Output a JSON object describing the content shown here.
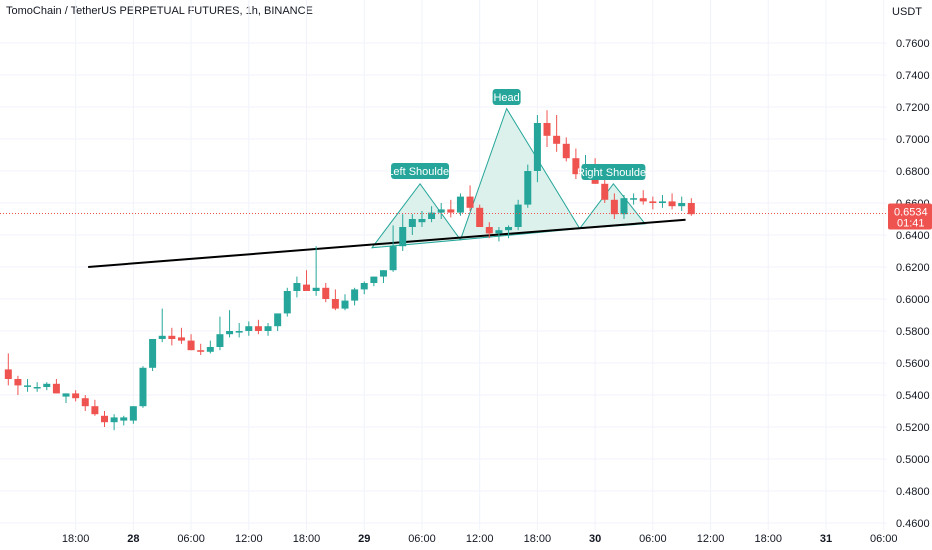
{
  "header": {
    "title": "TomoChain / TetherUS PERPETUAL FUTURES, 1h, BINANCE",
    "currency": "USDT"
  },
  "colors": {
    "up": "#26a69a",
    "down": "#ef5350",
    "pattern_fill": "#d7efe9",
    "pattern_line": "#26a69a",
    "neckline": "#000000",
    "current_price_line": "#ef5350",
    "grid": "#f0f3fa"
  },
  "chart_data": {
    "type": "candlestick",
    "symbol": "TomoChain / TetherUS PERPETUAL FUTURES",
    "interval": "1h",
    "exchange": "BINANCE",
    "ylim": [
      0.46,
      0.77
    ],
    "y_ticks": [
      "0.7600",
      "0.7400",
      "0.7200",
      "0.7000",
      "0.6800",
      "0.6600",
      "0.6400",
      "0.6200",
      "0.6000",
      "0.5800",
      "0.5600",
      "0.5400",
      "0.5200",
      "0.5000",
      "0.4800",
      "0.4600"
    ],
    "x_ticks": [
      {
        "label": "18:00",
        "bar": 7,
        "bold": false
      },
      {
        "label": "28",
        "bar": 13,
        "bold": true
      },
      {
        "label": "06:00",
        "bar": 19,
        "bold": false
      },
      {
        "label": "12:00",
        "bar": 25,
        "bold": false
      },
      {
        "label": "18:00",
        "bar": 31,
        "bold": false
      },
      {
        "label": "29",
        "bar": 37,
        "bold": true
      },
      {
        "label": "06:00",
        "bar": 43,
        "bold": false
      },
      {
        "label": "12:00",
        "bar": 49,
        "bold": false
      },
      {
        "label": "18:00",
        "bar": 55,
        "bold": false
      },
      {
        "label": "30",
        "bar": 61,
        "bold": true
      },
      {
        "label": "06:00",
        "bar": 67,
        "bold": false
      },
      {
        "label": "12:00",
        "bar": 73,
        "bold": false
      },
      {
        "label": "18:00",
        "bar": 79,
        "bold": false
      },
      {
        "label": "31",
        "bar": 85,
        "bold": true
      },
      {
        "label": "06:00",
        "bar": 91,
        "bold": false
      }
    ],
    "candles": [
      [
        0.556,
        0.566,
        0.546,
        0.55
      ],
      [
        0.55,
        0.552,
        0.54,
        0.546
      ],
      [
        0.546,
        0.55,
        0.542,
        0.546
      ],
      [
        0.545,
        0.548,
        0.542,
        0.545
      ],
      [
        0.545,
        0.548,
        0.543,
        0.547
      ],
      [
        0.547,
        0.55,
        0.541,
        0.541
      ],
      [
        0.539,
        0.541,
        0.535,
        0.541
      ],
      [
        0.541,
        0.543,
        0.536,
        0.538
      ],
      [
        0.538,
        0.54,
        0.53,
        0.533
      ],
      [
        0.533,
        0.537,
        0.527,
        0.528
      ],
      [
        0.527,
        0.53,
        0.52,
        0.523
      ],
      [
        0.523,
        0.528,
        0.518,
        0.526
      ],
      [
        0.524,
        0.527,
        0.521,
        0.526
      ],
      [
        0.524,
        0.533,
        0.522,
        0.533
      ],
      [
        0.533,
        0.558,
        0.532,
        0.557
      ],
      [
        0.557,
        0.575,
        0.555,
        0.575
      ],
      [
        0.575,
        0.594,
        0.573,
        0.577
      ],
      [
        0.577,
        0.582,
        0.571,
        0.575
      ],
      [
        0.576,
        0.582,
        0.572,
        0.574
      ],
      [
        0.574,
        0.578,
        0.568,
        0.568
      ],
      [
        0.568,
        0.572,
        0.565,
        0.567
      ],
      [
        0.567,
        0.574,
        0.566,
        0.57
      ],
      [
        0.57,
        0.589,
        0.568,
        0.578
      ],
      [
        0.578,
        0.593,
        0.576,
        0.58
      ],
      [
        0.579,
        0.585,
        0.576,
        0.58
      ],
      [
        0.58,
        0.586,
        0.577,
        0.583
      ],
      [
        0.583,
        0.587,
        0.578,
        0.58
      ],
      [
        0.58,
        0.585,
        0.577,
        0.583
      ],
      [
        0.583,
        0.59,
        0.58,
        0.591
      ],
      [
        0.591,
        0.607,
        0.589,
        0.605
      ],
      [
        0.605,
        0.614,
        0.601,
        0.61
      ],
      [
        0.609,
        0.618,
        0.605,
        0.605
      ],
      [
        0.605,
        0.633,
        0.602,
        0.607
      ],
      [
        0.607,
        0.61,
        0.598,
        0.6
      ],
      [
        0.6,
        0.606,
        0.593,
        0.594
      ],
      [
        0.594,
        0.603,
        0.593,
        0.599
      ],
      [
        0.599,
        0.607,
        0.596,
        0.606
      ],
      [
        0.606,
        0.611,
        0.603,
        0.61
      ],
      [
        0.61,
        0.614,
        0.608,
        0.614
      ],
      [
        0.614,
        0.618,
        0.61,
        0.618
      ],
      [
        0.618,
        0.646,
        0.617,
        0.633
      ],
      [
        0.633,
        0.653,
        0.63,
        0.645
      ],
      [
        0.645,
        0.653,
        0.64,
        0.65
      ],
      [
        0.648,
        0.655,
        0.645,
        0.65
      ],
      [
        0.65,
        0.658,
        0.648,
        0.654
      ],
      [
        0.654,
        0.66,
        0.65,
        0.656
      ],
      [
        0.656,
        0.662,
        0.651,
        0.654
      ],
      [
        0.654,
        0.666,
        0.652,
        0.664
      ],
      [
        0.664,
        0.671,
        0.655,
        0.657
      ],
      [
        0.657,
        0.659,
        0.645,
        0.645
      ],
      [
        0.645,
        0.648,
        0.638,
        0.641
      ],
      [
        0.641,
        0.645,
        0.636,
        0.643
      ],
      [
        0.643,
        0.646,
        0.638,
        0.645
      ],
      [
        0.645,
        0.662,
        0.643,
        0.659
      ],
      [
        0.659,
        0.684,
        0.657,
        0.68
      ],
      [
        0.68,
        0.715,
        0.673,
        0.71
      ],
      [
        0.71,
        0.718,
        0.695,
        0.702
      ],
      [
        0.702,
        0.715,
        0.692,
        0.697
      ],
      [
        0.697,
        0.701,
        0.686,
        0.688
      ],
      [
        0.688,
        0.694,
        0.675,
        0.678
      ],
      [
        0.678,
        0.69,
        0.675,
        0.684
      ],
      [
        0.684,
        0.688,
        0.672,
        0.672
      ],
      [
        0.672,
        0.676,
        0.66,
        0.662
      ],
      [
        0.662,
        0.666,
        0.65,
        0.653
      ],
      [
        0.653,
        0.665,
        0.65,
        0.663
      ],
      [
        0.663,
        0.666,
        0.659,
        0.663
      ],
      [
        0.663,
        0.668,
        0.659,
        0.661
      ],
      [
        0.661,
        0.664,
        0.656,
        0.66
      ],
      [
        0.66,
        0.665,
        0.657,
        0.661
      ],
      [
        0.661,
        0.666,
        0.656,
        0.658
      ],
      [
        0.658,
        0.664,
        0.655,
        0.66
      ],
      [
        0.66,
        0.663,
        0.652,
        0.653
      ]
    ],
    "neckline": {
      "from": [
        8.3,
        0.62
      ],
      "to": [
        70.4,
        0.6495
      ]
    },
    "pattern": {
      "left_shoulder": {
        "label": "Left Shoulder",
        "points": [
          [
            37.8,
            0.632
          ],
          [
            42.8,
            0.672
          ],
          [
            47.0,
            0.637
          ]
        ]
      },
      "head": {
        "label": "Head",
        "points": [
          [
            47.0,
            0.637
          ],
          [
            51.8,
            0.719
          ],
          [
            59.4,
            0.644
          ]
        ]
      },
      "right_shoulder": {
        "label": "Right Shoulder",
        "points": [
          [
            59.4,
            0.644
          ],
          [
            62.9,
            0.672
          ],
          [
            66.2,
            0.647
          ]
        ]
      }
    },
    "current_price": {
      "value": "0.6534",
      "timer": "01:41",
      "level": 0.6534
    }
  }
}
